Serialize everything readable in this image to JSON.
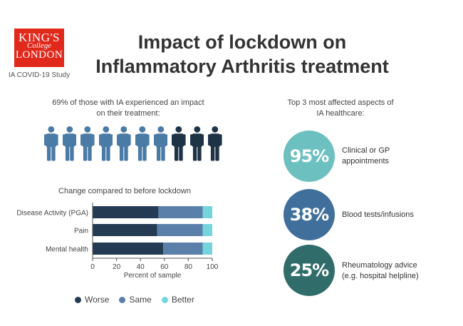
{
  "logo": {
    "line1": "KING'S",
    "line2": "College",
    "line3": "LONDON"
  },
  "study": "IA COVID-19 Study",
  "title_line1": "Impact of lockdown on",
  "title_line2": "Inflammatory Arthritis treatment",
  "impact_text_line1": "69% of those with IA experienced an impact",
  "impact_text_line2": "on their treatment:",
  "people": {
    "impacted": 7,
    "not_impacted": 3
  },
  "aspects_title_line1": "Top 3 most affected aspects of",
  "aspects_title_line2": "IA healthcare:",
  "aspects": [
    {
      "value": "95%",
      "label_line1": "Clinical or GP",
      "label_line2": "appointments",
      "color": "#6cc0c0"
    },
    {
      "value": "38%",
      "label_line1": "Blood tests/infusions",
      "label_line2": "",
      "color": "#3f6f9a"
    },
    {
      "value": "25%",
      "label_line1": "Rheumatology advice",
      "label_line2": "(e.g. hospital helpline)",
      "color": "#2f6c6a"
    }
  ],
  "colors": {
    "worse": "#243b53",
    "same": "#5a7fa8",
    "better": "#76d5dc",
    "impacted": "#4a7aa6",
    "not_impacted": "#1f3347"
  },
  "chart_data": {
    "type": "bar",
    "orientation": "horizontal",
    "stacked": true,
    "title": "Change compared to before lockdown",
    "categories": [
      "Disease Activity (PGA)",
      "Pain",
      "Mental health"
    ],
    "series": [
      {
        "name": "Worse",
        "values": [
          55,
          54,
          59
        ]
      },
      {
        "name": "Same",
        "values": [
          37,
          38,
          33
        ]
      },
      {
        "name": "Better",
        "values": [
          8,
          8,
          8
        ]
      }
    ],
    "xlabel": "Percent of sample",
    "xlim": [
      0,
      100
    ],
    "xticks": [
      "0",
      "20",
      "40",
      "60",
      "80",
      "100"
    ],
    "legend": "bottom"
  }
}
